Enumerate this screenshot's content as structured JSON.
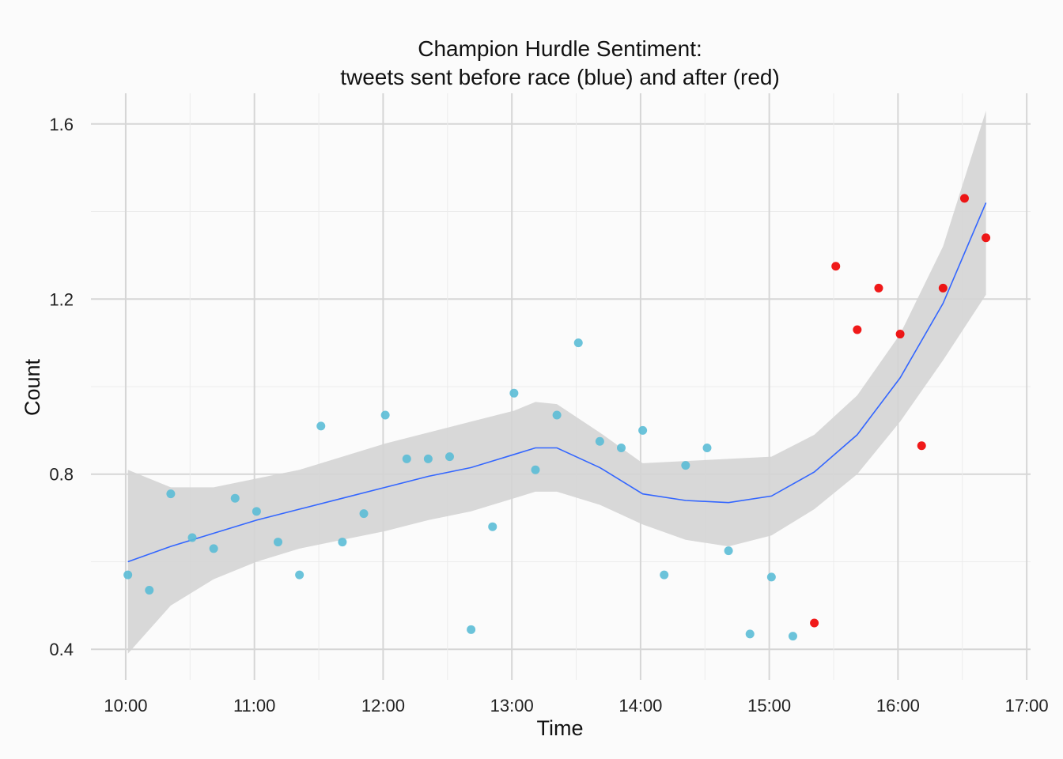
{
  "chart_data": {
    "type": "scatter",
    "title": "Champion Hurdle Sentiment:",
    "subtitle": "tweets sent before race (blue) and after (red)",
    "xlabel": "Time",
    "ylabel": "Count",
    "xlim_hours": [
      9.73,
      17.03
    ],
    "ylim": [
      0.33,
      1.67
    ],
    "x_ticks": [
      {
        "value": 10,
        "label": "10:00"
      },
      {
        "value": 11,
        "label": "11:00"
      },
      {
        "value": 12,
        "label": "12:00"
      },
      {
        "value": 13,
        "label": "13:00"
      },
      {
        "value": 14,
        "label": "14:00"
      },
      {
        "value": 15,
        "label": "15:00"
      },
      {
        "value": 16,
        "label": "16:00"
      },
      {
        "value": 17,
        "label": "17:00"
      }
    ],
    "y_ticks": [
      {
        "value": 0.4,
        "label": "0.4"
      },
      {
        "value": 0.8,
        "label": "0.8"
      },
      {
        "value": 1.2,
        "label": "1.2"
      },
      {
        "value": 1.6,
        "label": "1.6"
      }
    ],
    "grid": true,
    "colors": {
      "before": "#5bbcd6",
      "after": "#ee0000",
      "smooth": "#3366ff",
      "ribbon": "#d4d4d4"
    },
    "series": [
      {
        "points": [
          {
            "x": "10:01",
            "y": 0.57
          },
          {
            "x": "10:11",
            "y": 0.535
          },
          {
            "x": "10:21",
            "y": 0.755
          },
          {
            "x": "10:31",
            "y": 0.655
          },
          {
            "x": "10:41",
            "y": 0.63
          },
          {
            "x": "10:51",
            "y": 0.745
          },
          {
            "x": "11:01",
            "y": 0.715
          },
          {
            "x": "11:11",
            "y": 0.645
          },
          {
            "x": "11:21",
            "y": 0.57
          },
          {
            "x": "11:31",
            "y": 0.91
          },
          {
            "x": "11:41",
            "y": 0.645
          },
          {
            "x": "11:51",
            "y": 0.71
          },
          {
            "x": "12:01",
            "y": 0.935
          },
          {
            "x": "12:11",
            "y": 0.835
          },
          {
            "x": "12:21",
            "y": 0.835
          },
          {
            "x": "12:31",
            "y": 0.84
          },
          {
            "x": "12:41",
            "y": 0.445
          },
          {
            "x": "12:51",
            "y": 0.68
          },
          {
            "x": "13:01",
            "y": 0.985
          },
          {
            "x": "13:11",
            "y": 0.81
          },
          {
            "x": "13:21",
            "y": 0.935
          },
          {
            "x": "13:31",
            "y": 1.1
          },
          {
            "x": "13:41",
            "y": 0.875
          },
          {
            "x": "13:51",
            "y": 0.86
          },
          {
            "x": "14:01",
            "y": 0.9
          },
          {
            "x": "14:11",
            "y": 0.57
          },
          {
            "x": "14:21",
            "y": 0.82
          },
          {
            "x": "14:31",
            "y": 0.86
          },
          {
            "x": "14:41",
            "y": 0.625
          },
          {
            "x": "14:51",
            "y": 0.435
          },
          {
            "x": "15:01",
            "y": 0.565
          },
          {
            "x": "15:11",
            "y": 0.43
          }
        ]
      },
      {
        "points": [
          {
            "x": "15:21",
            "y": 0.46
          },
          {
            "x": "15:31",
            "y": 1.275
          },
          {
            "x": "15:41",
            "y": 1.13
          },
          {
            "x": "15:51",
            "y": 1.225
          },
          {
            "x": "16:01",
            "y": 1.12
          },
          {
            "x": "16:11",
            "y": 0.865
          },
          {
            "x": "16:21",
            "y": 1.225
          },
          {
            "x": "16:31",
            "y": 1.43
          },
          {
            "x": "16:41",
            "y": 1.34
          }
        ]
      }
    ],
    "smooth": {
      "x": [
        "10:01",
        "10:21",
        "10:41",
        "11:01",
        "11:21",
        "11:41",
        "12:01",
        "12:21",
        "12:41",
        "13:01",
        "13:11",
        "13:21",
        "13:41",
        "14:01",
        "14:21",
        "14:41",
        "15:01",
        "15:21",
        "15:41",
        "16:01",
        "16:21",
        "16:41"
      ],
      "y": [
        0.6,
        0.635,
        0.665,
        0.695,
        0.72,
        0.745,
        0.77,
        0.795,
        0.815,
        0.845,
        0.86,
        0.86,
        0.815,
        0.755,
        0.74,
        0.735,
        0.75,
        0.805,
        0.89,
        1.02,
        1.19,
        1.42
      ],
      "lower": [
        0.39,
        0.5,
        0.56,
        0.6,
        0.63,
        0.65,
        0.67,
        0.695,
        0.715,
        0.745,
        0.76,
        0.76,
        0.73,
        0.685,
        0.65,
        0.635,
        0.66,
        0.72,
        0.8,
        0.92,
        1.06,
        1.21
      ],
      "upper": [
        0.81,
        0.77,
        0.77,
        0.79,
        0.81,
        0.84,
        0.87,
        0.895,
        0.92,
        0.945,
        0.965,
        0.96,
        0.895,
        0.825,
        0.83,
        0.835,
        0.84,
        0.89,
        0.98,
        1.12,
        1.32,
        1.63
      ]
    }
  }
}
